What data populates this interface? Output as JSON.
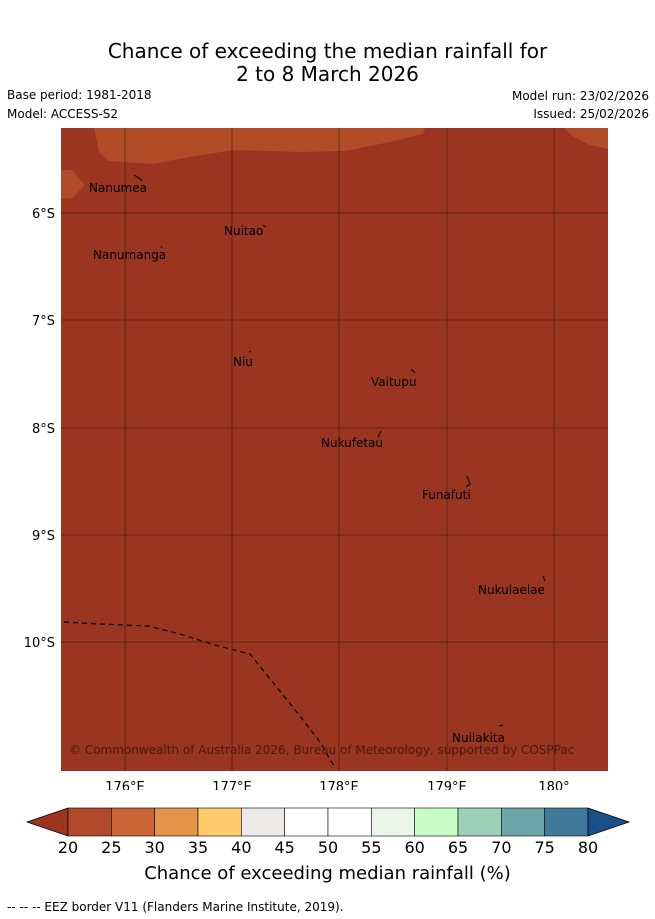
{
  "title_line1": "Chance of exceeding the median rainfall for",
  "title_line2": "2 to 8 March 2026",
  "meta": {
    "base_period": "Base period: 1981-2018",
    "model": "Model: ACCESS-S2",
    "model_run": "Model run: 23/02/2026",
    "issued": "Issued: 25/02/2026"
  },
  "map": {
    "lat_ticks": [
      "6°S",
      "7°S",
      "8°S",
      "9°S",
      "10°S"
    ],
    "lon_ticks": [
      "176°E",
      "177°E",
      "178°E",
      "179°E",
      "180°"
    ],
    "places": [
      "Nanumea",
      "Nuitao",
      "Nanumanga",
      "Niu",
      "Vaitupu",
      "Nukufetau",
      "Funafuti",
      "Nukulaelae",
      "Nuilakita"
    ],
    "copyright": "© Commonwealth of Australia 2026, Bureau of Meteorology, supported by COSPPac",
    "colors": {
      "ocean_fill": "#993520",
      "band_fill": "#b04c28",
      "grid": "#5a1e10",
      "eez": "#000000"
    }
  },
  "colorbar": {
    "labels": [
      "20",
      "25",
      "30",
      "35",
      "40",
      "45",
      "50",
      "55",
      "60",
      "65",
      "70",
      "75",
      "80"
    ],
    "colors": [
      "#b04a2a",
      "#cc6535",
      "#e29448",
      "#fdcb6c",
      "#edebe8",
      "#ffffff",
      "#ffffff",
      "#eaf5e9",
      "#c9fdc8",
      "#9ecfb9",
      "#6da5a8",
      "#3f7a9b"
    ],
    "low_extend_color": "#993520",
    "high_extend_color": "#1a5088",
    "title": "Chance of exceeding median rainfall (%)"
  },
  "footnote": "--  --  -- EEZ border V11 (Flanders Marine Institute, 2019)."
}
